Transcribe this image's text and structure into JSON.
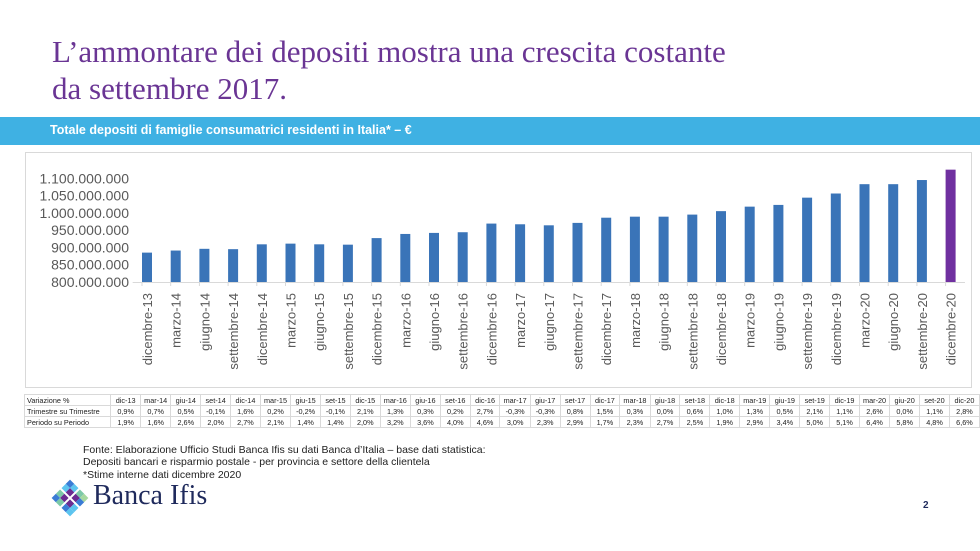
{
  "slide": {
    "title_line1": "L’ammontare dei depositi mostra una crescita costante",
    "title_line2": "da settembre 2017.",
    "band_title": "Totale depositi di famiglie consumatrici residenti in Italia* – €",
    "page_number": "2",
    "logo_text": "Banca Ifis",
    "source_lines": [
      "Fonte: Elaborazione Ufficio Studi Banca Ifis su dati Banca d’Italia – base dati statistica:",
      "Depositi bancari e risparmio postale - per provincia e settore della clientela",
      "*Stime interne dati dicembre 2020"
    ]
  },
  "colors": {
    "title": "#6a3594",
    "band": "#3fb1e3",
    "bar": "#3a74b8",
    "bar_highlight": "#7030a0",
    "axis_text": "#595959"
  },
  "chart_data": {
    "type": "bar",
    "title": "Totale depositi di famiglie consumatrici residenti in Italia* – €",
    "xlabel": "",
    "ylabel": "",
    "ylim": [
      800000000,
      1100000000
    ],
    "yticks": [
      "800.000.000",
      "850.000.000",
      "900.000.000",
      "950.000.000",
      "1.000.000.000",
      "1.050.000.000",
      "1.100.000.000"
    ],
    "ytick_values": [
      800000000,
      850000000,
      900000000,
      950000000,
      1000000000,
      1050000000,
      1100000000
    ],
    "grid": false,
    "legend": "none",
    "highlight_last": true,
    "categories": [
      "dicembre-13",
      "marzo-14",
      "giugno-14",
      "settembre-14",
      "dicembre-14",
      "marzo-15",
      "giugno-15",
      "settembre-15",
      "dicembre-15",
      "marzo-16",
      "giugno-16",
      "settembre-16",
      "dicembre-16",
      "marzo-17",
      "giugno-17",
      "settembre-17",
      "dicembre-17",
      "marzo-18",
      "giugno-18",
      "settembre-18",
      "dicembre-18",
      "marzo-19",
      "giugno-19",
      "settembre-19",
      "dicembre-19",
      "marzo-20",
      "giugno-20",
      "settembre-20",
      "dicembre-20"
    ],
    "values": [
      885000000,
      891000000,
      896000000,
      895000000,
      909000000,
      911000000,
      909000000,
      908000000,
      927000000,
      939000000,
      942000000,
      944000000,
      969000000,
      967000000,
      964000000,
      971000000,
      986000000,
      989000000,
      989000000,
      995000000,
      1005000000,
      1018000000,
      1023000000,
      1044000000,
      1056000000,
      1083000000,
      1083000000,
      1095000000,
      1125000000
    ]
  },
  "table": {
    "header_label": "Variazione %",
    "columns": [
      "dic-13",
      "mar-14",
      "giu-14",
      "set-14",
      "dic-14",
      "mar-15",
      "giu-15",
      "set-15",
      "dic-15",
      "mar-16",
      "giu-16",
      "set-16",
      "dic-16",
      "mar-17",
      "giu-17",
      "set-17",
      "dic-17",
      "mar-18",
      "giu-18",
      "set-18",
      "dic-18",
      "mar-19",
      "giu-19",
      "set-19",
      "dic-19",
      "mar-20",
      "giu-20",
      "set-20",
      "dic-20"
    ],
    "rows": [
      {
        "label": "Trimestre su Trimestre",
        "values": [
          "0,9%",
          "0,7%",
          "0,5%",
          "-0,1%",
          "1,6%",
          "0,2%",
          "-0,2%",
          "-0,1%",
          "2,1%",
          "1,3%",
          "0,3%",
          "0,2%",
          "2,7%",
          "-0,3%",
          "-0,3%",
          "0,8%",
          "1,5%",
          "0,3%",
          "0,0%",
          "0,6%",
          "1,0%",
          "1,3%",
          "0,5%",
          "2,1%",
          "1,1%",
          "2,6%",
          "0,0%",
          "1,1%",
          "2,8%"
        ]
      },
      {
        "label": "Periodo su Periodo",
        "values": [
          "1,9%",
          "1,6%",
          "2,6%",
          "2,0%",
          "2,7%",
          "2,1%",
          "1,4%",
          "1,4%",
          "2,0%",
          "3,2%",
          "3,6%",
          "4,0%",
          "4,6%",
          "3,0%",
          "2,3%",
          "2,9%",
          "1,7%",
          "2,3%",
          "2,7%",
          "2,5%",
          "1,9%",
          "2,9%",
          "3,4%",
          "5,0%",
          "5,1%",
          "6,4%",
          "5,8%",
          "4,8%",
          "6,6%"
        ]
      }
    ]
  }
}
